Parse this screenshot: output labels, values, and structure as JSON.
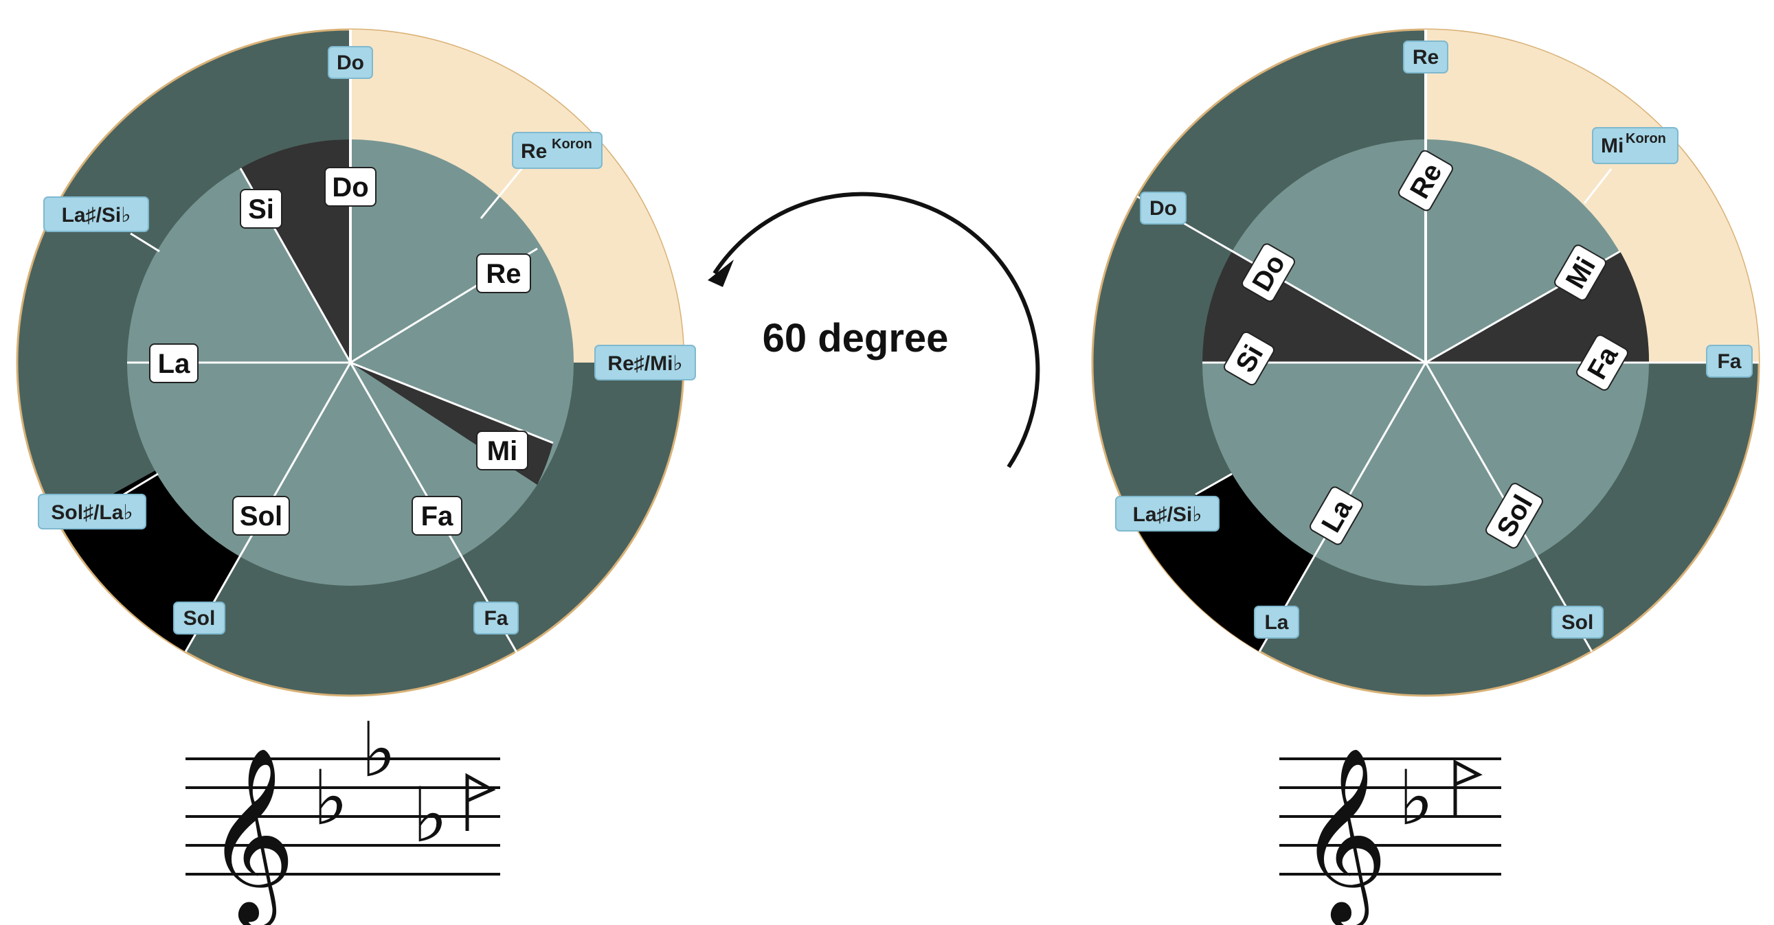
{
  "rotation": {
    "label": "60 degree"
  },
  "colors": {
    "outer_dark": "#4a625e",
    "outer_light": "#f8e5c6",
    "outer_black": "#000000",
    "inner_light": "#779693",
    "inner_dark": "#333333",
    "label_blue": "#a6d6e7",
    "divider": "#ffffff"
  },
  "wheels": [
    {
      "name": "wheel-left",
      "outer_labels": [
        {
          "text": "Do"
        },
        {
          "text": "Re",
          "sup": "Koron"
        },
        {
          "text": "Re♯/Mi♭"
        },
        {
          "text": "Fa"
        },
        {
          "text": "Sol"
        },
        {
          "text": "Sol♯/La♭"
        },
        {
          "text": "La♯/Si♭"
        }
      ],
      "inner_labels": [
        "Do",
        "Re",
        "Mi",
        "Fa",
        "Sol",
        "La",
        "Si"
      ]
    },
    {
      "name": "wheel-right",
      "outer_labels": [
        {
          "text": "Re"
        },
        {
          "text": "Mi",
          "sup": "Koron"
        },
        {
          "text": "Fa"
        },
        {
          "text": "Sol"
        },
        {
          "text": "La"
        },
        {
          "text": "La♯/Si♭"
        },
        {
          "text": "Do"
        }
      ],
      "inner_labels": [
        "Re",
        "Mi",
        "Fa",
        "Sol",
        "La",
        "Si",
        "Do"
      ]
    }
  ],
  "staves": [
    {
      "name": "staff-left",
      "clef": "𝄞",
      "accidentals": [
        "♭",
        "♭",
        "♭"
      ],
      "koron": true
    },
    {
      "name": "staff-right",
      "clef": "𝄞",
      "accidentals": [
        "♭"
      ],
      "koron": true
    }
  ]
}
